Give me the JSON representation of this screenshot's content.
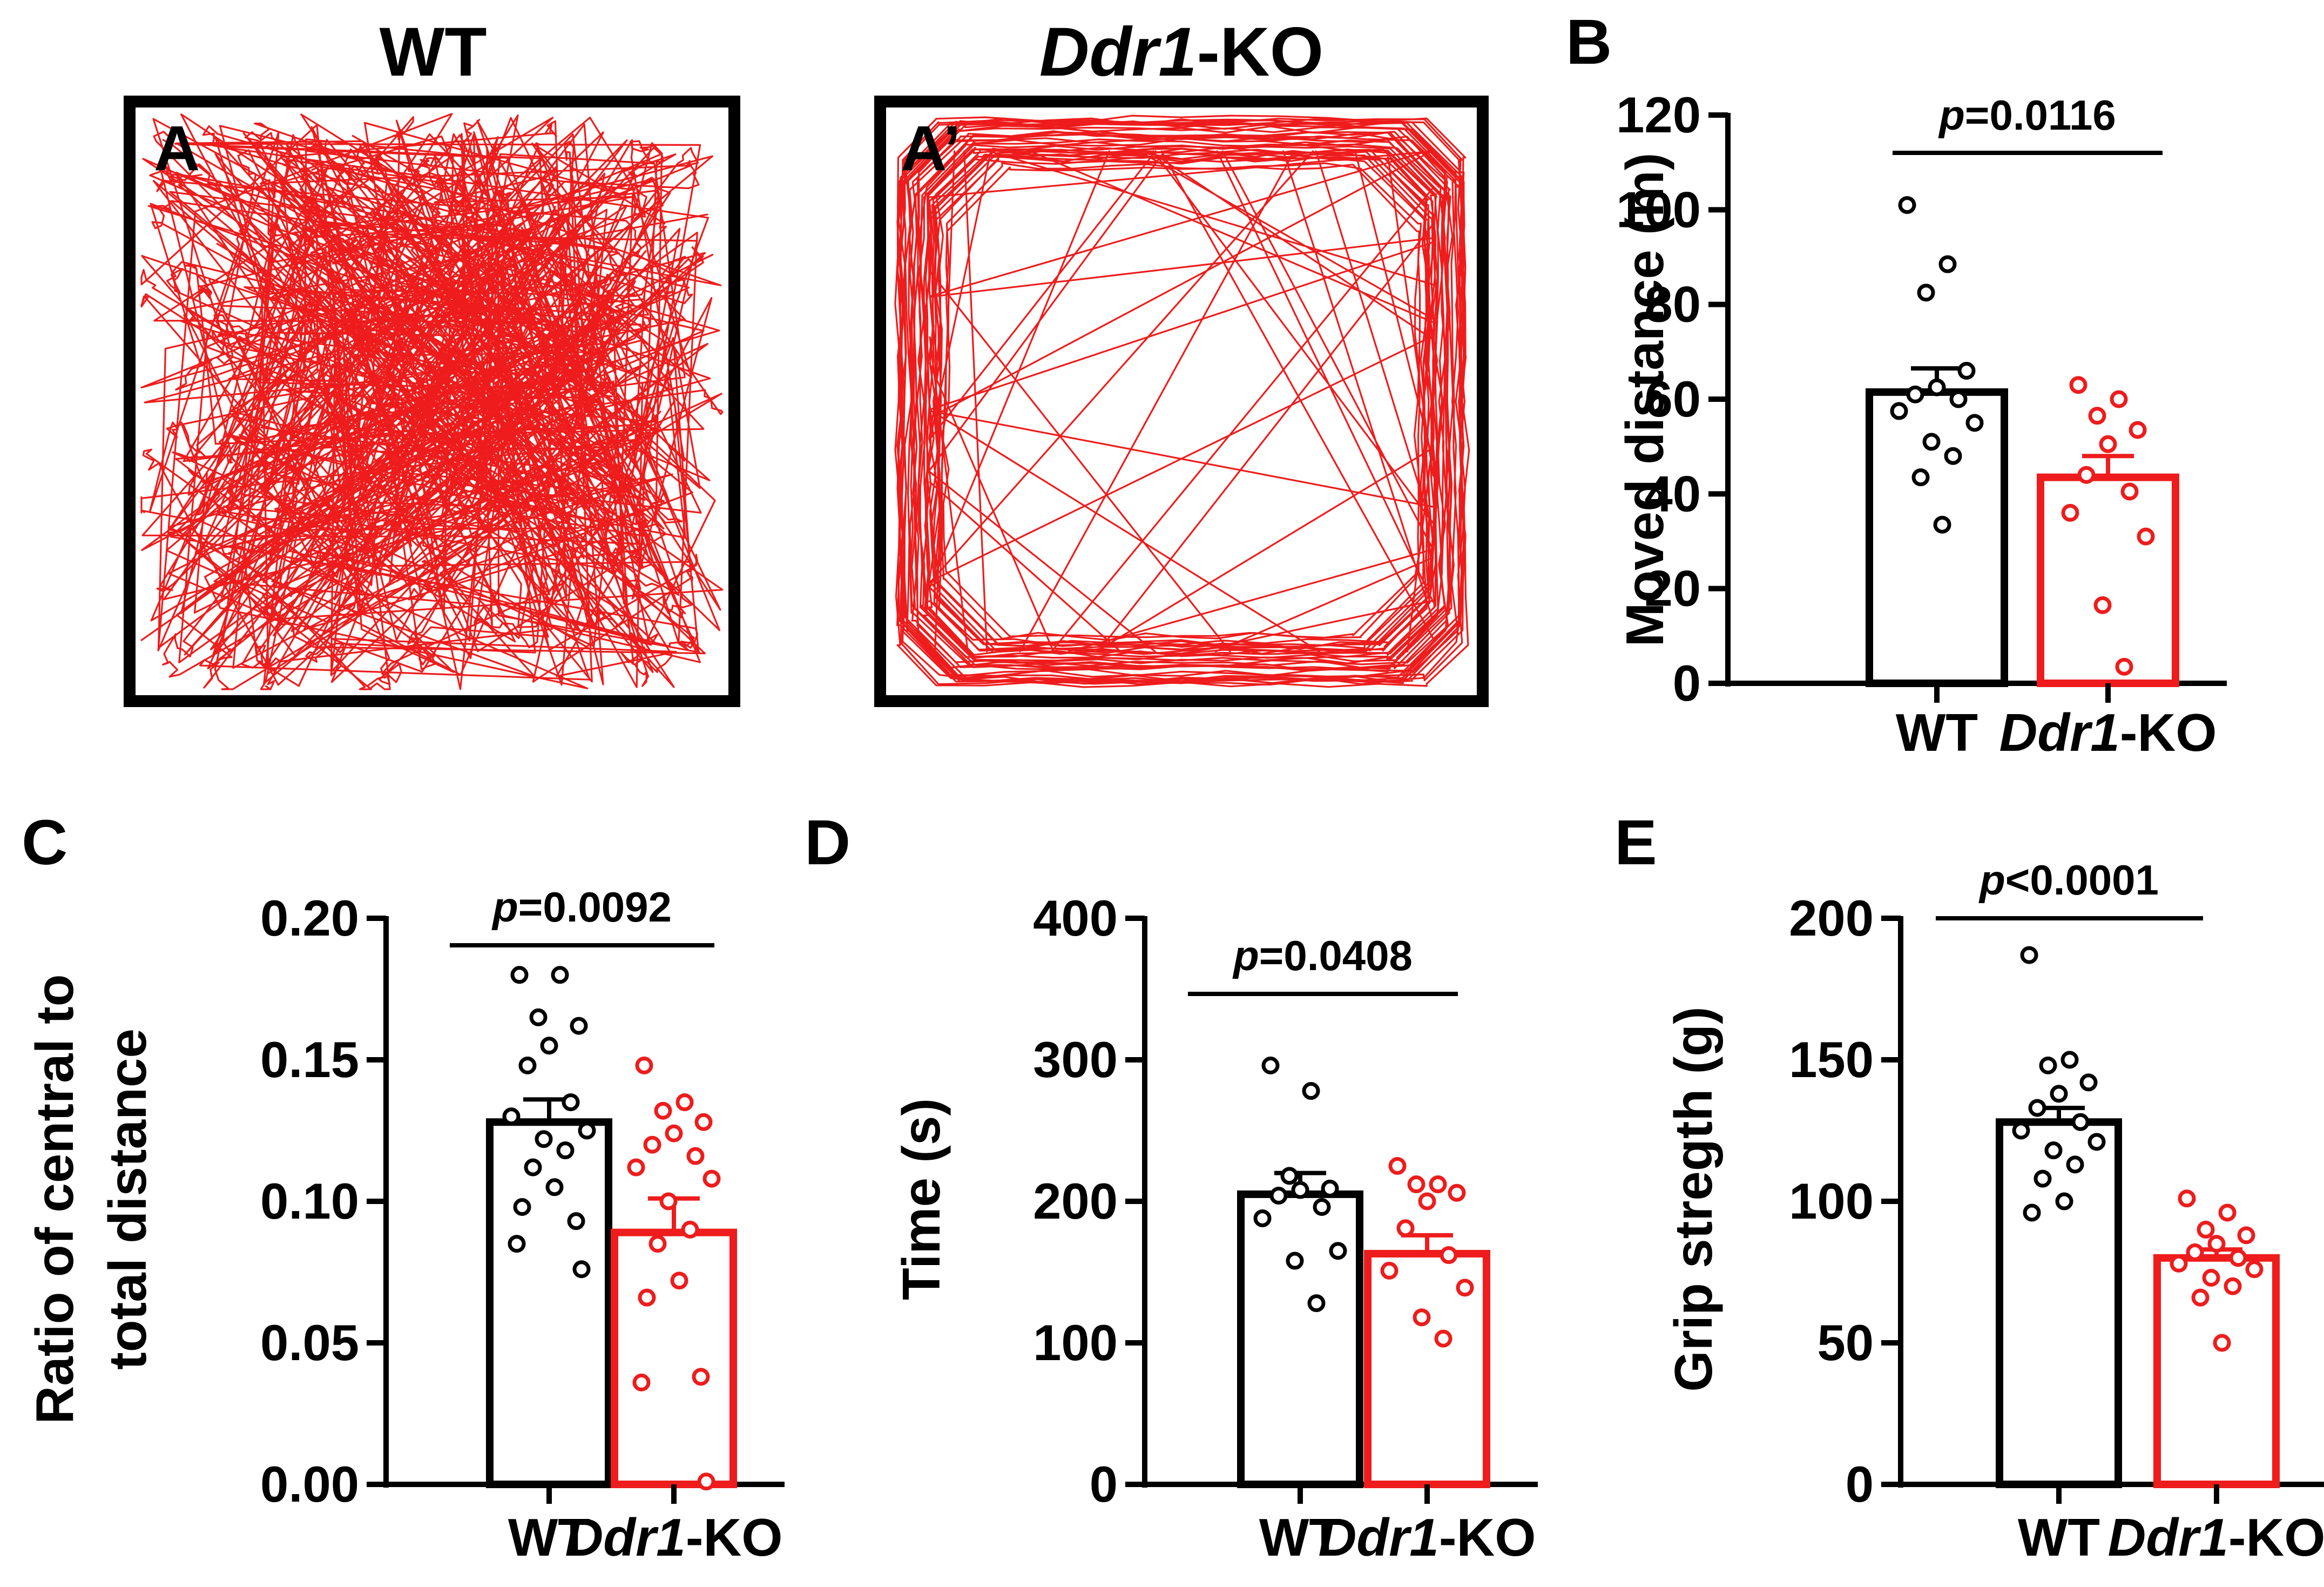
{
  "colors": {
    "wt": "#000000",
    "ko": "#ee1c1c"
  },
  "panels": {
    "A": {
      "label": "A",
      "title": "WT"
    },
    "A2": {
      "label": "A’",
      "title_gene": "Ddr1",
      "title_suffix": "-KO"
    }
  },
  "chart_data": [
    {
      "id": "B",
      "panel_label": "B",
      "type": "bar",
      "categories": [
        {
          "name": "WT",
          "gene": "",
          "suffix": "WT"
        },
        {
          "name": "Ddr1-KO",
          "gene": "Ddr1",
          "suffix": "-KO"
        }
      ],
      "ylabel": [
        "Moved distance (m)"
      ],
      "ylim": [
        0,
        120
      ],
      "yticks": [
        0,
        20,
        40,
        60,
        80,
        100,
        120
      ],
      "tick_labels": [
        "0",
        "20",
        "40",
        "60",
        "80",
        "100",
        "120"
      ],
      "means": [
        61.5,
        43.5
      ],
      "sem": [
        5.0,
        4.5
      ],
      "points": [
        [
          101,
          88.5,
          82.5,
          66,
          62.5,
          61,
          60,
          57.5,
          55,
          51,
          48,
          43.5,
          33.5
        ],
        [
          63,
          60,
          56.5,
          53.5,
          50.5,
          44,
          40.5,
          36,
          31,
          16.5,
          3.5
        ]
      ],
      "p_prefix": "p",
      "p_rest": "=0.0116"
    },
    {
      "id": "C",
      "panel_label": "C",
      "type": "bar",
      "categories": [
        {
          "name": "WT",
          "gene": "",
          "suffix": "WT"
        },
        {
          "name": "Ddr1-KO",
          "gene": "Ddr1",
          "suffix": "-KO"
        }
      ],
      "ylabel": [
        "Ratio of central to",
        "total distance"
      ],
      "ylim": [
        0,
        0.2
      ],
      "yticks": [
        0,
        0.05,
        0.1,
        0.15,
        0.2
      ],
      "tick_labels": [
        "0.00",
        "0.05",
        "0.10",
        "0.15",
        "0.20"
      ],
      "means": [
        0.128,
        0.089
      ],
      "sem": [
        0.008,
        0.012
      ],
      "points": [
        [
          0.18,
          0.18,
          0.165,
          0.162,
          0.155,
          0.148,
          0.135,
          0.13,
          0.125,
          0.122,
          0.118,
          0.112,
          0.105,
          0.098,
          0.093,
          0.085,
          0.076
        ],
        [
          0.148,
          0.135,
          0.132,
          0.128,
          0.124,
          0.12,
          0.116,
          0.112,
          0.108,
          0.1,
          0.09,
          0.085,
          0.072,
          0.066,
          0.038,
          0.036,
          0.001
        ]
      ],
      "p_prefix": "p",
      "p_rest": "=0.0092"
    },
    {
      "id": "D",
      "panel_label": "D",
      "type": "bar",
      "categories": [
        {
          "name": "WT",
          "gene": "",
          "suffix": "WT"
        },
        {
          "name": "Ddr1-KO",
          "gene": "Ddr1",
          "suffix": "-KO"
        }
      ],
      "ylabel": [
        "Time (s)"
      ],
      "ylim": [
        0,
        400
      ],
      "yticks": [
        0,
        100,
        200,
        300,
        400
      ],
      "tick_labels": [
        "0",
        "100",
        "200",
        "300",
        "400"
      ],
      "means": [
        205,
        163
      ],
      "sem": [
        15,
        13
      ],
      "points": [
        [
          296,
          278,
          218,
          209,
          208,
          204,
          196,
          188,
          165,
          158,
          128
        ],
        [
          225,
          212,
          212,
          206,
          200,
          181,
          162,
          151,
          139,
          118,
          103
        ]
      ],
      "p_prefix": "p",
      "p_rest": "=0.0408"
    },
    {
      "id": "E",
      "panel_label": "E",
      "type": "bar",
      "categories": [
        {
          "name": "WT",
          "gene": "",
          "suffix": "WT"
        },
        {
          "name": "Ddr1-KO",
          "gene": "Ddr1",
          "suffix": "-KO"
        }
      ],
      "ylabel": [
        "Grip stregth (g)"
      ],
      "ylim": [
        0,
        200
      ],
      "yticks": [
        0,
        50,
        100,
        150,
        200
      ],
      "tick_labels": [
        "0",
        "50",
        "100",
        "150",
        "200"
      ],
      "means": [
        128,
        80
      ],
      "sem": [
        5,
        3
      ],
      "points": [
        [
          187,
          150,
          148,
          142,
          138,
          133,
          128,
          125,
          121,
          118,
          113,
          108,
          100,
          96
        ],
        [
          101,
          96,
          90,
          88,
          85,
          82,
          80,
          78,
          76,
          73,
          70,
          66,
          50
        ]
      ],
      "p_prefix": "p",
      "p_rest": "<0.0001"
    }
  ]
}
